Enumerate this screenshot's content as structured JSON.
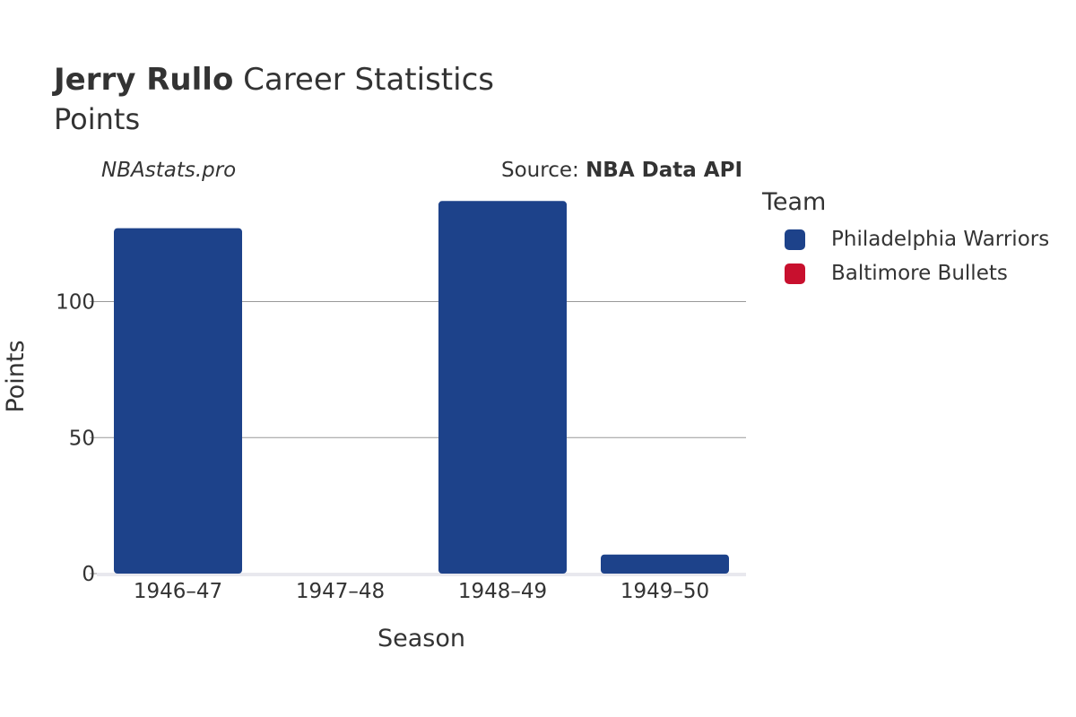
{
  "header": {
    "player_name": "Jerry Rullo",
    "title_suffix": "Career Statistics",
    "subtitle": "Points"
  },
  "watermark": "NBAstats.pro",
  "source": {
    "prefix": "Source:",
    "name": "NBA Data API"
  },
  "legend": {
    "title": "Team",
    "items": [
      {
        "label": "Philadelphia Warriors",
        "color": "#1d428a"
      },
      {
        "label": "Baltimore Bullets",
        "color": "#c8102e"
      }
    ]
  },
  "chart_data": {
    "type": "bar",
    "title": "Jerry Rullo Career Statistics",
    "subtitle": "Points",
    "xlabel": "Season",
    "ylabel": "Points",
    "categories": [
      "1946–47",
      "1947–48",
      "1948–49",
      "1949–50"
    ],
    "series": [
      {
        "name": "Philadelphia Warriors",
        "color": "#1d428a",
        "values": [
          127,
          0,
          137,
          7
        ]
      },
      {
        "name": "Baltimore Bullets",
        "color": "#c8102e",
        "values": [
          0,
          0,
          0,
          0
        ]
      }
    ],
    "ylim": [
      0,
      145
    ],
    "yticks": [
      0,
      50,
      100
    ],
    "grid": true,
    "legend_position": "right"
  }
}
